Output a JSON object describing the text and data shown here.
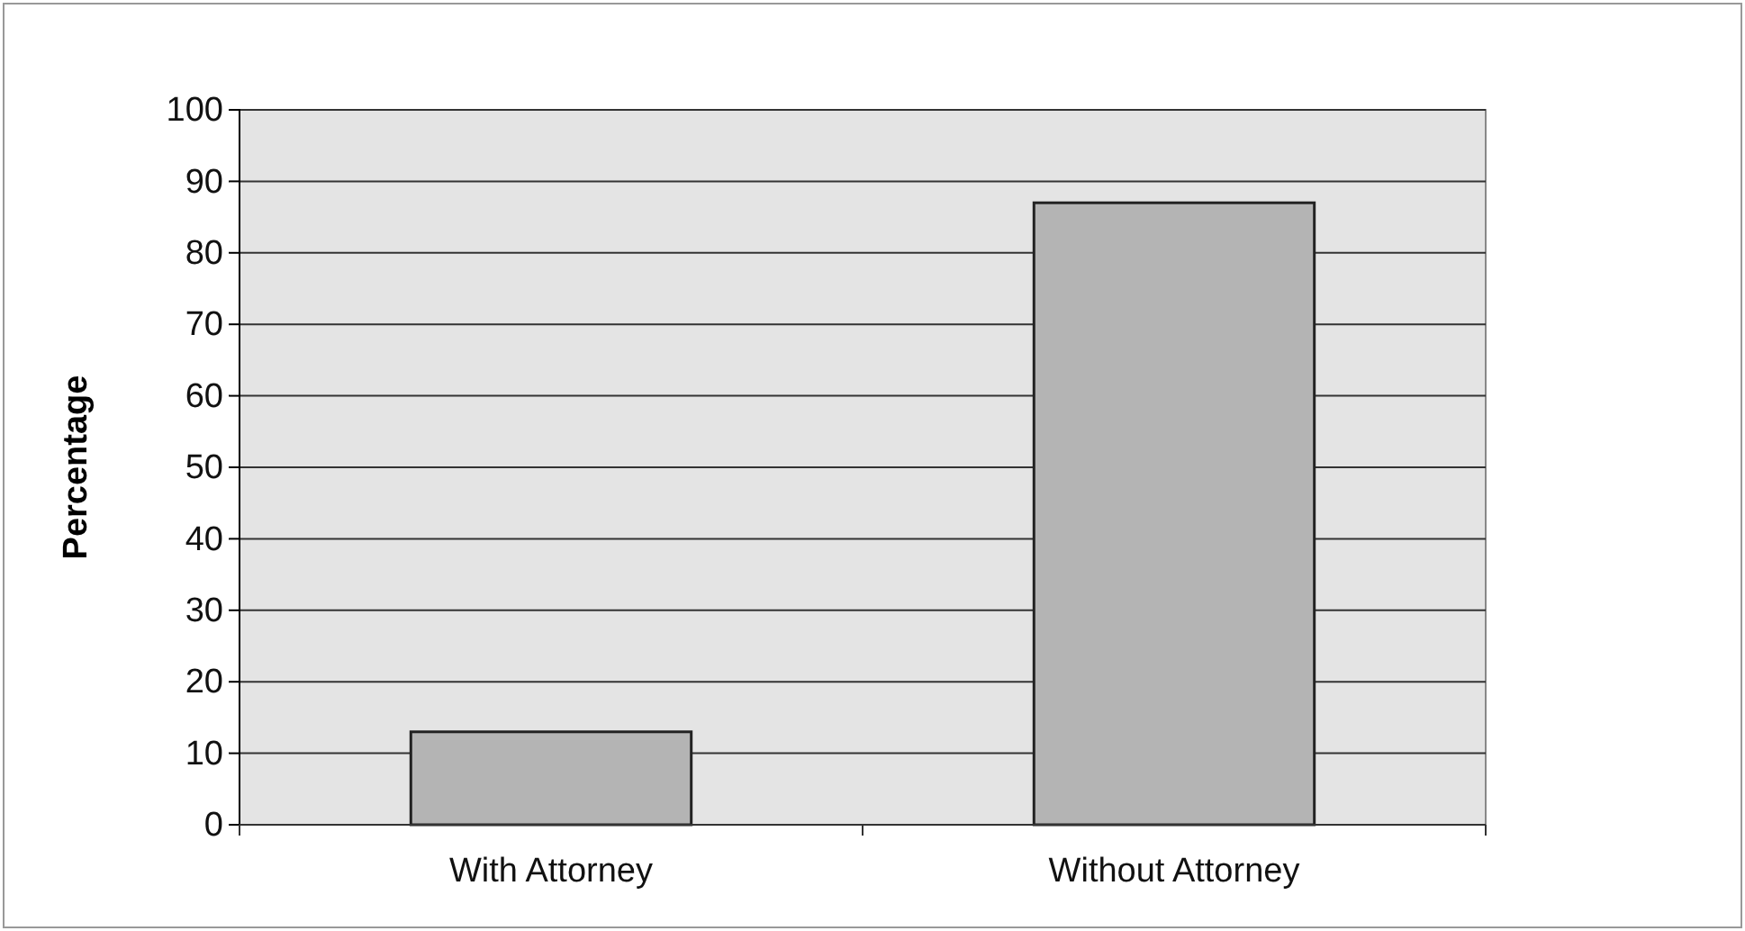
{
  "chart_data": {
    "type": "bar",
    "ylabel": "Percentage",
    "categories": [
      "With Attorney",
      "Without Attorney"
    ],
    "values": [
      13,
      87
    ],
    "color": "#b4b4b4",
    "ylim": [
      0,
      100
    ],
    "yticks": [
      0,
      10,
      20,
      30,
      40,
      50,
      60,
      70,
      80,
      90,
      100
    ],
    "grid": "y"
  }
}
